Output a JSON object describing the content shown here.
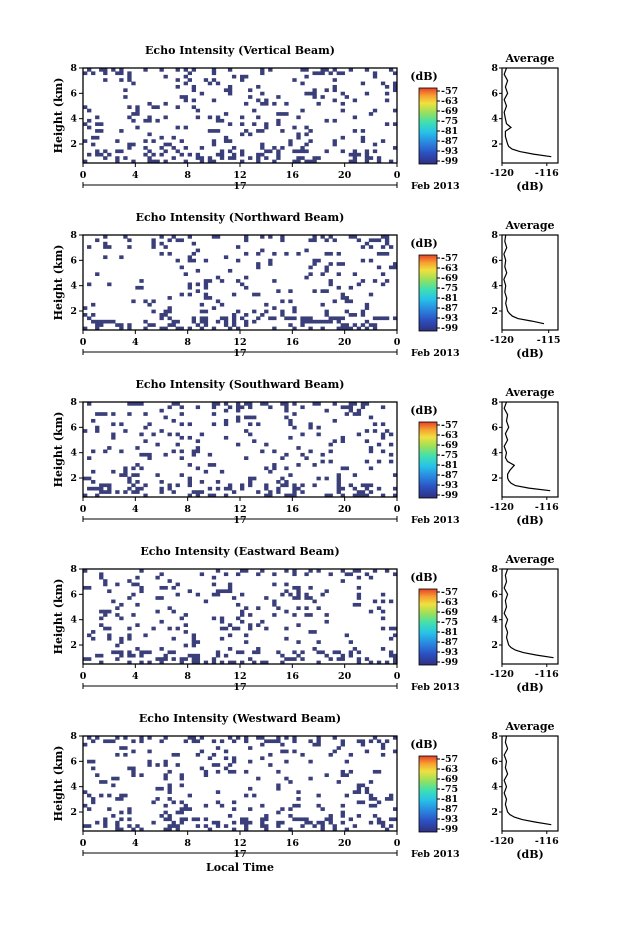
{
  "chart_data": [
    {
      "type": "heatmap",
      "title": "Echo Intensity (Vertical Beam)",
      "ylabel": "Height (km)",
      "x_ticks": [
        "0",
        "4",
        "8",
        "12",
        "16",
        "20",
        "0"
      ],
      "date_label": "17",
      "date_suffix": "Feb 2013",
      "y_ticks": [
        "2",
        "4",
        "6",
        "8"
      ],
      "ylim": [
        0.5,
        8
      ],
      "xlim": [
        0,
        24
      ],
      "colorbar_title": "(dB)",
      "colorbar_ticks": [
        "-57",
        "-63",
        "-69",
        "-75",
        "-81",
        "-87",
        "-93",
        "-99"
      ],
      "average_title": "Average",
      "average_xlabel": "(dB)",
      "average_xticks": [
        "-120",
        "-116"
      ],
      "average_xlim": [
        -120,
        -115
      ],
      "average_profile": {
        "height": [
          1.0,
          1.2,
          1.4,
          1.6,
          1.8,
          2.0,
          2.3,
          2.6,
          3.0,
          3.3,
          3.6,
          4.0,
          4.5,
          5.0,
          5.5,
          6.0,
          6.5,
          7.0,
          7.5,
          8.0
        ],
        "value": [
          -115.6,
          -117.2,
          -118.4,
          -119.1,
          -119.4,
          -119.5,
          -119.6,
          -119.7,
          -119.7,
          -119.2,
          -119.6,
          -119.7,
          -119.8,
          -119.6,
          -119.8,
          -119.5,
          -119.7,
          -119.5,
          -119.8,
          -119.6
        ]
      }
    },
    {
      "type": "heatmap",
      "title": "Echo Intensity (Northward Beam)",
      "ylabel": "Height (km)",
      "x_ticks": [
        "0",
        "4",
        "8",
        "12",
        "16",
        "20",
        "0"
      ],
      "date_label": "17",
      "date_suffix": "Feb 2013",
      "y_ticks": [
        "2",
        "4",
        "6",
        "8"
      ],
      "ylim": [
        0.5,
        8
      ],
      "xlim": [
        0,
        24
      ],
      "colorbar_title": "(dB)",
      "colorbar_ticks": [
        "-57",
        "-63",
        "-69",
        "-75",
        "-81",
        "-87",
        "-93",
        "-99"
      ],
      "average_title": "Average",
      "average_xlabel": "(dB)",
      "average_xticks": [
        "-120",
        "-115"
      ],
      "average_xlim": [
        -120,
        -114
      ],
      "average_profile": {
        "height": [
          1.0,
          1.2,
          1.4,
          1.6,
          1.8,
          2.0,
          2.3,
          2.6,
          3.0,
          3.5,
          4.0,
          4.5,
          5.0,
          5.5,
          6.0,
          6.5,
          7.0,
          7.5,
          8.0
        ],
        "value": [
          -115.5,
          -116.8,
          -118.3,
          -118.9,
          -119.2,
          -119.4,
          -119.5,
          -119.6,
          -119.5,
          -119.7,
          -119.6,
          -119.8,
          -119.5,
          -119.7,
          -119.6,
          -119.8,
          -119.5,
          -119.7,
          -119.6
        ]
      }
    },
    {
      "type": "heatmap",
      "title": "Echo Intensity (Southward Beam)",
      "ylabel": "Height (km)",
      "x_ticks": [
        "0",
        "4",
        "8",
        "12",
        "16",
        "20",
        "0"
      ],
      "date_label": "17",
      "date_suffix": "Feb 2013",
      "y_ticks": [
        "2",
        "4",
        "6",
        "8"
      ],
      "ylim": [
        0.5,
        8
      ],
      "xlim": [
        0,
        24
      ],
      "colorbar_title": "(dB)",
      "colorbar_ticks": [
        "-57",
        "-63",
        "-69",
        "-75",
        "-81",
        "-87",
        "-93",
        "-99"
      ],
      "average_title": "Average",
      "average_xlabel": "(dB)",
      "average_xticks": [
        "-120",
        "-116"
      ],
      "average_xlim": [
        -120,
        -115
      ],
      "average_profile": {
        "height": [
          1.0,
          1.2,
          1.4,
          1.6,
          1.8,
          2.0,
          2.3,
          2.6,
          3.0,
          3.3,
          3.6,
          4.0,
          4.5,
          5.0,
          5.5,
          6.0,
          6.5,
          7.0,
          7.5,
          8.0
        ],
        "value": [
          -115.7,
          -117.6,
          -118.8,
          -119.2,
          -119.4,
          -119.5,
          -119.5,
          -119.3,
          -118.9,
          -119.5,
          -119.7,
          -119.6,
          -119.8,
          -119.5,
          -119.7,
          -119.4,
          -119.6,
          -119.5,
          -119.8,
          -119.6
        ]
      }
    },
    {
      "type": "heatmap",
      "title": "Echo Intensity (Eastward Beam)",
      "ylabel": "Height (km)",
      "x_ticks": [
        "0",
        "4",
        "8",
        "12",
        "16",
        "20",
        "0"
      ],
      "date_label": "17",
      "date_suffix": "Feb 2013",
      "y_ticks": [
        "2",
        "4",
        "6",
        "8"
      ],
      "ylim": [
        0.5,
        8
      ],
      "xlim": [
        0,
        24
      ],
      "colorbar_title": "(dB)",
      "colorbar_ticks": [
        "-57",
        "-63",
        "-69",
        "-75",
        "-81",
        "-87",
        "-93",
        "-99"
      ],
      "average_title": "Average",
      "average_xlabel": "(dB)",
      "average_xticks": [
        "-120",
        "-116"
      ],
      "average_xlim": [
        -120,
        -115
      ],
      "average_profile": {
        "height": [
          1.0,
          1.2,
          1.4,
          1.6,
          1.8,
          2.0,
          2.3,
          2.6,
          3.0,
          3.5,
          4.0,
          4.5,
          5.0,
          5.5,
          6.0,
          6.5,
          7.0,
          7.5,
          8.0
        ],
        "value": [
          -115.4,
          -116.9,
          -118.1,
          -118.8,
          -119.2,
          -119.4,
          -119.5,
          -119.6,
          -119.5,
          -119.7,
          -119.5,
          -119.8,
          -119.6,
          -119.7,
          -119.5,
          -119.8,
          -119.6,
          -119.7,
          -119.5
        ]
      }
    },
    {
      "type": "heatmap",
      "title": "Echo Intensity (Westward Beam)",
      "ylabel": "Height (km)",
      "x_ticks": [
        "0",
        "4",
        "8",
        "12",
        "16",
        "20",
        "0"
      ],
      "date_label": "17",
      "date_suffix": "Feb 2013",
      "xlabel": "Local Time",
      "y_ticks": [
        "2",
        "4",
        "6",
        "8"
      ],
      "ylim": [
        0.5,
        8
      ],
      "xlim": [
        0,
        24
      ],
      "colorbar_title": "(dB)",
      "colorbar_ticks": [
        "-57",
        "-63",
        "-69",
        "-75",
        "-81",
        "-87",
        "-93",
        "-99"
      ],
      "average_title": "Average",
      "average_xlabel": "(dB)",
      "average_xticks": [
        "-120",
        "-116"
      ],
      "average_xlim": [
        -120,
        -115
      ],
      "average_profile": {
        "height": [
          1.0,
          1.2,
          1.4,
          1.6,
          1.8,
          2.0,
          2.3,
          2.6,
          3.0,
          3.5,
          4.0,
          4.5,
          5.0,
          5.5,
          6.0,
          6.5,
          7.0,
          7.5,
          8.0
        ],
        "value": [
          -115.6,
          -117.0,
          -118.2,
          -118.9,
          -119.3,
          -119.5,
          -119.6,
          -119.7,
          -119.6,
          -119.8,
          -119.6,
          -119.8,
          -119.5,
          -119.7,
          -119.6,
          -119.8,
          -119.5,
          -119.7,
          -119.6
        ]
      }
    }
  ],
  "colors": {
    "pixel": "#3a3f7a",
    "colorscale": [
      "#2f2f7f",
      "#2c4fc0",
      "#2a86e0",
      "#27c2e8",
      "#3fe0b0",
      "#9be05a",
      "#f0e040",
      "#f6a030",
      "#e8402a"
    ]
  }
}
